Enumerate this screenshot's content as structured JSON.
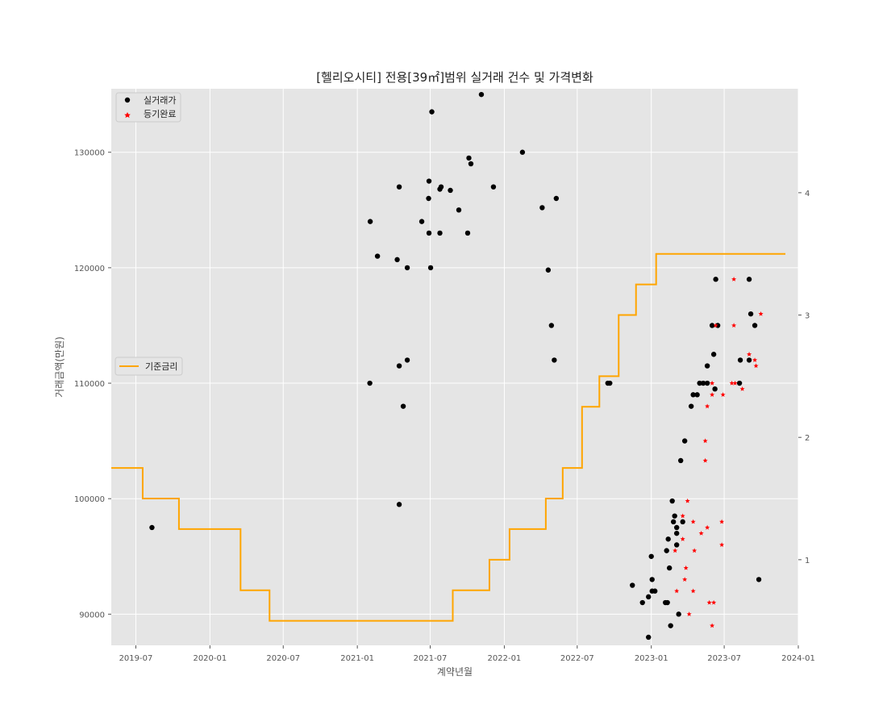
{
  "chart_data": {
    "type": "scatter",
    "title": "[헬리오시티] 전용[39㎡]범위 실거래 건수 및 가격변화",
    "xlabel": "계약년월",
    "ylabel": "거래금액(만원)",
    "x_ticks": [
      "2019-07",
      "2020-01",
      "2020-07",
      "2021-01",
      "2021-07",
      "2022-01",
      "2022-07",
      "2023-01",
      "2023-07",
      "2024-01"
    ],
    "y_ticks": [
      "90000",
      "100000",
      "110000",
      "120000",
      "130000"
    ],
    "y2_ticks": [
      "1",
      "2",
      "3",
      "4"
    ],
    "xlim": [
      "2019-05-01",
      "2024-01-01"
    ],
    "ylim": [
      87300,
      135500
    ],
    "y2lim": [
      0.3,
      4.85
    ],
    "grid": true,
    "legend_left_placement": "upper left",
    "legend_rate_placement": "center left",
    "colors": {
      "background": "#e5e5e5",
      "grid": "#ffffff",
      "trade": "#000000",
      "registered": "#ff0000",
      "rate": "#ffa500",
      "tick_text": "#555555"
    },
    "series": [
      {
        "name": "실거래가",
        "marker": "circle",
        "points": [
          [
            "2019-08-10",
            97500
          ],
          [
            "2021-02-02",
            124000
          ],
          [
            "2021-02-20",
            121000
          ],
          [
            "2021-02-01",
            110000
          ],
          [
            "2021-04-10",
            120700
          ],
          [
            "2021-04-15",
            127000
          ],
          [
            "2021-04-15",
            111500
          ],
          [
            "2021-04-15",
            99500
          ],
          [
            "2021-04-25",
            108000
          ],
          [
            "2021-05-05",
            120000
          ],
          [
            "2021-05-05",
            112000
          ],
          [
            "2021-06-10",
            124000
          ],
          [
            "2021-06-28",
            127500
          ],
          [
            "2021-06-27",
            126000
          ],
          [
            "2021-06-28",
            123000
          ],
          [
            "2021-07-02",
            120000
          ],
          [
            "2021-07-05",
            133500
          ],
          [
            "2021-07-25",
            126800
          ],
          [
            "2021-07-28",
            127000
          ],
          [
            "2021-07-25",
            123000
          ],
          [
            "2021-08-20",
            126700
          ],
          [
            "2021-09-10",
            125000
          ],
          [
            "2021-10-02",
            123000
          ],
          [
            "2021-10-05",
            129500
          ],
          [
            "2021-10-10",
            129000
          ],
          [
            "2021-11-05",
            135000
          ],
          [
            "2021-12-05",
            127000
          ],
          [
            "2022-02-15",
            130000
          ],
          [
            "2022-04-05",
            125200
          ],
          [
            "2022-04-20",
            119800
          ],
          [
            "2022-04-28",
            115000
          ],
          [
            "2022-05-05",
            112000
          ],
          [
            "2022-05-10",
            126000
          ],
          [
            "2022-09-15",
            110000
          ],
          [
            "2022-09-20",
            110000
          ],
          [
            "2022-11-15",
            92500
          ],
          [
            "2022-12-10",
            91000
          ],
          [
            "2022-12-25",
            91500
          ],
          [
            "2022-12-25",
            88000
          ],
          [
            "2023-01-01",
            95000
          ],
          [
            "2023-01-03",
            93000
          ],
          [
            "2023-01-03",
            92000
          ],
          [
            "2023-01-10",
            92000
          ],
          [
            "2023-02-05",
            91000
          ],
          [
            "2023-02-10",
            91000
          ],
          [
            "2023-02-08",
            95500
          ],
          [
            "2023-02-12",
            96500
          ],
          [
            "2023-02-15",
            94000
          ],
          [
            "2023-02-18",
            89000
          ],
          [
            "2023-02-22",
            99800
          ],
          [
            "2023-02-25",
            98000
          ],
          [
            "2023-02-28",
            98500
          ],
          [
            "2023-03-05",
            97500
          ],
          [
            "2023-03-05",
            97000
          ],
          [
            "2023-03-05",
            96000
          ],
          [
            "2023-03-10",
            90000
          ],
          [
            "2023-03-15",
            103300
          ],
          [
            "2023-03-20",
            98000
          ],
          [
            "2023-03-25",
            105000
          ],
          [
            "2023-04-10",
            108000
          ],
          [
            "2023-04-15",
            109000
          ],
          [
            "2023-04-25",
            109000
          ],
          [
            "2023-05-01",
            110000
          ],
          [
            "2023-05-10",
            110000
          ],
          [
            "2023-05-20",
            110000
          ],
          [
            "2023-05-20",
            111500
          ],
          [
            "2023-06-01",
            115000
          ],
          [
            "2023-06-05",
            112500
          ],
          [
            "2023-06-08",
            109500
          ],
          [
            "2023-06-10",
            119000
          ],
          [
            "2023-06-15",
            115000
          ],
          [
            "2023-08-10",
            112000
          ],
          [
            "2023-08-08",
            110000
          ],
          [
            "2023-09-01",
            112000
          ],
          [
            "2023-09-01",
            119000
          ],
          [
            "2023-09-05",
            116000
          ],
          [
            "2023-09-15",
            115000
          ],
          [
            "2023-09-25",
            93000
          ]
        ]
      },
      {
        "name": "등기완료",
        "marker": "star",
        "points": [
          [
            "2023-03-01",
            95500
          ],
          [
            "2023-03-05",
            92000
          ],
          [
            "2023-03-20",
            98500
          ],
          [
            "2023-03-20",
            96500
          ],
          [
            "2023-03-25",
            93000
          ],
          [
            "2023-03-28",
            94000
          ],
          [
            "2023-04-01",
            99800
          ],
          [
            "2023-04-05",
            90000
          ],
          [
            "2023-04-15",
            98000
          ],
          [
            "2023-04-15",
            92000
          ],
          [
            "2023-04-18",
            95500
          ],
          [
            "2023-05-05",
            97000
          ],
          [
            "2023-05-15",
            105000
          ],
          [
            "2023-05-15",
            103300
          ],
          [
            "2023-05-20",
            97500
          ],
          [
            "2023-05-20",
            108000
          ],
          [
            "2023-05-25",
            91000
          ],
          [
            "2023-06-01",
            89000
          ],
          [
            "2023-06-01",
            110000
          ],
          [
            "2023-06-01",
            109000
          ],
          [
            "2023-06-05",
            91000
          ],
          [
            "2023-06-10",
            115000
          ],
          [
            "2023-06-25",
            98000
          ],
          [
            "2023-06-25",
            96000
          ],
          [
            "2023-06-28",
            109000
          ],
          [
            "2023-07-20",
            110000
          ],
          [
            "2023-07-25",
            119000
          ],
          [
            "2023-07-25",
            115000
          ],
          [
            "2023-07-28",
            110000
          ],
          [
            "2023-08-15",
            109500
          ],
          [
            "2023-09-01",
            112500
          ],
          [
            "2023-09-15",
            112000
          ],
          [
            "2023-09-18",
            111500
          ],
          [
            "2023-09-30",
            116000
          ]
        ]
      },
      {
        "name": "기준금리",
        "type": "step",
        "axis": "right",
        "points": [
          [
            "2019-05-01",
            1.75
          ],
          [
            "2019-07-18",
            1.5
          ],
          [
            "2019-10-16",
            1.25
          ],
          [
            "2020-03-17",
            0.75
          ],
          [
            "2020-05-28",
            0.5
          ],
          [
            "2021-08-26",
            0.75
          ],
          [
            "2021-11-25",
            1.0
          ],
          [
            "2022-01-14",
            1.25
          ],
          [
            "2022-04-14",
            1.5
          ],
          [
            "2022-05-26",
            1.75
          ],
          [
            "2022-07-13",
            2.25
          ],
          [
            "2022-08-25",
            2.5
          ],
          [
            "2022-10-12",
            3.0
          ],
          [
            "2022-11-24",
            3.25
          ],
          [
            "2023-01-13",
            3.5
          ],
          [
            "2023-11-30",
            3.5
          ]
        ]
      }
    ]
  }
}
